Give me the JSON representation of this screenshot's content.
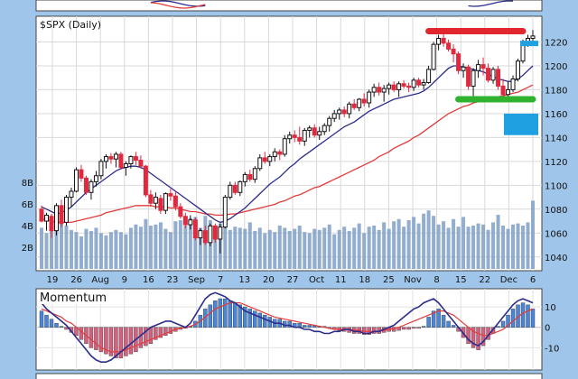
{
  "chart_data": [
    {
      "type": "candlestick",
      "title": "$SPX (Daily)",
      "y_ticks": [
        1040,
        1060,
        1080,
        1100,
        1120,
        1140,
        1160,
        1180,
        1200,
        1220
      ],
      "ylim": [
        1030,
        1240
      ],
      "volume_ticks": [
        "2B",
        "4B",
        "6B",
        "8B"
      ],
      "volume_ylim": [
        0,
        10
      ],
      "x_ticks": [
        "19",
        "26",
        "Aug",
        "9",
        "16",
        "23",
        "Sep",
        "7",
        "13",
        "20",
        "27",
        "Oct",
        "11",
        "18",
        "25",
        "Nov",
        "8",
        "15",
        "22",
        "Dec",
        "6"
      ],
      "grid": true,
      "price": [
        {
          "o": 1080,
          "h": 1083,
          "l": 1069,
          "c": 1070
        },
        {
          "o": 1070,
          "h": 1077,
          "l": 1062,
          "c": 1075
        },
        {
          "o": 1074,
          "h": 1076,
          "l": 1056,
          "c": 1062
        },
        {
          "o": 1062,
          "h": 1085,
          "l": 1058,
          "c": 1083
        },
        {
          "o": 1083,
          "h": 1088,
          "l": 1065,
          "c": 1068
        },
        {
          "o": 1069,
          "h": 1092,
          "l": 1066,
          "c": 1090
        },
        {
          "o": 1090,
          "h": 1098,
          "l": 1082,
          "c": 1095
        },
        {
          "o": 1095,
          "h": 1115,
          "l": 1094,
          "c": 1113
        },
        {
          "o": 1113,
          "h": 1117,
          "l": 1103,
          "c": 1106
        },
        {
          "o": 1106,
          "h": 1108,
          "l": 1092,
          "c": 1094
        },
        {
          "o": 1094,
          "h": 1105,
          "l": 1088,
          "c": 1103
        },
        {
          "o": 1103,
          "h": 1112,
          "l": 1099,
          "c": 1108
        },
        {
          "o": 1108,
          "h": 1122,
          "l": 1105,
          "c": 1120
        },
        {
          "o": 1120,
          "h": 1126,
          "l": 1114,
          "c": 1124
        },
        {
          "o": 1124,
          "h": 1127,
          "l": 1118,
          "c": 1122
        },
        {
          "o": 1122,
          "h": 1128,
          "l": 1115,
          "c": 1126
        },
        {
          "o": 1126,
          "h": 1128,
          "l": 1113,
          "c": 1115
        },
        {
          "o": 1115,
          "h": 1120,
          "l": 1108,
          "c": 1118
        },
        {
          "o": 1118,
          "h": 1125,
          "l": 1114,
          "c": 1124
        },
        {
          "o": 1124,
          "h": 1128,
          "l": 1117,
          "c": 1121
        },
        {
          "o": 1121,
          "h": 1125,
          "l": 1114,
          "c": 1116
        },
        {
          "o": 1116,
          "h": 1117,
          "l": 1090,
          "c": 1092
        },
        {
          "o": 1092,
          "h": 1096,
          "l": 1082,
          "c": 1085
        },
        {
          "o": 1085,
          "h": 1094,
          "l": 1080,
          "c": 1090
        },
        {
          "o": 1089,
          "h": 1092,
          "l": 1076,
          "c": 1079
        },
        {
          "o": 1079,
          "h": 1094,
          "l": 1076,
          "c": 1093
        },
        {
          "o": 1093,
          "h": 1097,
          "l": 1087,
          "c": 1091
        },
        {
          "o": 1091,
          "h": 1095,
          "l": 1079,
          "c": 1082
        },
        {
          "o": 1082,
          "h": 1085,
          "l": 1072,
          "c": 1074
        },
        {
          "o": 1074,
          "h": 1077,
          "l": 1064,
          "c": 1067
        },
        {
          "o": 1067,
          "h": 1075,
          "l": 1063,
          "c": 1071
        },
        {
          "o": 1071,
          "h": 1073,
          "l": 1054,
          "c": 1056
        },
        {
          "o": 1056,
          "h": 1064,
          "l": 1050,
          "c": 1062
        },
        {
          "o": 1062,
          "h": 1066,
          "l": 1050,
          "c": 1052
        },
        {
          "o": 1052,
          "h": 1068,
          "l": 1049,
          "c": 1066
        },
        {
          "o": 1066,
          "h": 1068,
          "l": 1052,
          "c": 1055
        },
        {
          "o": 1055,
          "h": 1068,
          "l": 1043,
          "c": 1065
        },
        {
          "o": 1065,
          "h": 1092,
          "l": 1064,
          "c": 1090
        },
        {
          "o": 1090,
          "h": 1103,
          "l": 1088,
          "c": 1100
        },
        {
          "o": 1100,
          "h": 1103,
          "l": 1092,
          "c": 1094
        },
        {
          "o": 1094,
          "h": 1104,
          "l": 1091,
          "c": 1103
        },
        {
          "o": 1103,
          "h": 1111,
          "l": 1099,
          "c": 1109
        },
        {
          "o": 1109,
          "h": 1113,
          "l": 1103,
          "c": 1105
        },
        {
          "o": 1105,
          "h": 1116,
          "l": 1102,
          "c": 1114
        },
        {
          "o": 1114,
          "h": 1126,
          "l": 1112,
          "c": 1123
        },
        {
          "o": 1123,
          "h": 1128,
          "l": 1118,
          "c": 1120
        },
        {
          "o": 1120,
          "h": 1126,
          "l": 1116,
          "c": 1124
        },
        {
          "o": 1124,
          "h": 1131,
          "l": 1120,
          "c": 1128
        },
        {
          "o": 1128,
          "h": 1130,
          "l": 1121,
          "c": 1126
        },
        {
          "o": 1126,
          "h": 1142,
          "l": 1124,
          "c": 1139
        },
        {
          "o": 1139,
          "h": 1145,
          "l": 1135,
          "c": 1142
        },
        {
          "o": 1142,
          "h": 1146,
          "l": 1136,
          "c": 1140
        },
        {
          "o": 1140,
          "h": 1149,
          "l": 1134,
          "c": 1137
        },
        {
          "o": 1137,
          "h": 1148,
          "l": 1133,
          "c": 1146
        },
        {
          "o": 1146,
          "h": 1150,
          "l": 1140,
          "c": 1148
        },
        {
          "o": 1148,
          "h": 1151,
          "l": 1140,
          "c": 1142
        },
        {
          "o": 1142,
          "h": 1149,
          "l": 1138,
          "c": 1145
        },
        {
          "o": 1145,
          "h": 1152,
          "l": 1142,
          "c": 1150
        },
        {
          "o": 1150,
          "h": 1158,
          "l": 1145,
          "c": 1156
        },
        {
          "o": 1156,
          "h": 1163,
          "l": 1153,
          "c": 1160
        },
        {
          "o": 1160,
          "h": 1165,
          "l": 1155,
          "c": 1163
        },
        {
          "o": 1163,
          "h": 1166,
          "l": 1157,
          "c": 1160
        },
        {
          "o": 1160,
          "h": 1170,
          "l": 1156,
          "c": 1168
        },
        {
          "o": 1168,
          "h": 1172,
          "l": 1163,
          "c": 1165
        },
        {
          "o": 1165,
          "h": 1173,
          "l": 1162,
          "c": 1172
        },
        {
          "o": 1172,
          "h": 1177,
          "l": 1166,
          "c": 1169
        },
        {
          "o": 1169,
          "h": 1180,
          "l": 1165,
          "c": 1178
        },
        {
          "o": 1178,
          "h": 1185,
          "l": 1174,
          "c": 1182
        },
        {
          "o": 1182,
          "h": 1186,
          "l": 1175,
          "c": 1178
        },
        {
          "o": 1178,
          "h": 1184,
          "l": 1170,
          "c": 1181
        },
        {
          "o": 1181,
          "h": 1186,
          "l": 1176,
          "c": 1184
        },
        {
          "o": 1184,
          "h": 1187,
          "l": 1178,
          "c": 1180
        },
        {
          "o": 1180,
          "h": 1187,
          "l": 1174,
          "c": 1185
        },
        {
          "o": 1185,
          "h": 1188,
          "l": 1181,
          "c": 1183
        },
        {
          "o": 1183,
          "h": 1186,
          "l": 1178,
          "c": 1182
        },
        {
          "o": 1182,
          "h": 1190,
          "l": 1179,
          "c": 1188
        },
        {
          "o": 1188,
          "h": 1190,
          "l": 1182,
          "c": 1184
        },
        {
          "o": 1184,
          "h": 1189,
          "l": 1180,
          "c": 1186
        },
        {
          "o": 1186,
          "h": 1200,
          "l": 1185,
          "c": 1197
        },
        {
          "o": 1197,
          "h": 1220,
          "l": 1196,
          "c": 1218
        },
        {
          "o": 1218,
          "h": 1226,
          "l": 1213,
          "c": 1223
        },
        {
          "o": 1223,
          "h": 1227,
          "l": 1216,
          "c": 1219
        },
        {
          "o": 1219,
          "h": 1222,
          "l": 1212,
          "c": 1214
        },
        {
          "o": 1214,
          "h": 1218,
          "l": 1203,
          "c": 1210
        },
        {
          "o": 1210,
          "h": 1212,
          "l": 1193,
          "c": 1196
        },
        {
          "o": 1196,
          "h": 1202,
          "l": 1190,
          "c": 1199
        },
        {
          "o": 1199,
          "h": 1201,
          "l": 1180,
          "c": 1183
        },
        {
          "o": 1183,
          "h": 1198,
          "l": 1173,
          "c": 1196
        },
        {
          "o": 1196,
          "h": 1205,
          "l": 1190,
          "c": 1201
        },
        {
          "o": 1201,
          "h": 1207,
          "l": 1192,
          "c": 1198
        },
        {
          "o": 1198,
          "h": 1202,
          "l": 1186,
          "c": 1188
        },
        {
          "o": 1188,
          "h": 1199,
          "l": 1185,
          "c": 1197
        },
        {
          "o": 1197,
          "h": 1200,
          "l": 1180,
          "c": 1183
        },
        {
          "o": 1183,
          "h": 1189,
          "l": 1173,
          "c": 1176
        },
        {
          "o": 1176,
          "h": 1187,
          "l": 1174,
          "c": 1180
        },
        {
          "o": 1180,
          "h": 1192,
          "l": 1178,
          "c": 1189
        },
        {
          "o": 1189,
          "h": 1206,
          "l": 1187,
          "c": 1204
        },
        {
          "o": 1204,
          "h": 1222,
          "l": 1202,
          "c": 1220
        },
        {
          "o": 1220,
          "h": 1226,
          "l": 1216,
          "c": 1223
        },
        {
          "o": 1223,
          "h": 1230,
          "l": 1220,
          "c": 1225
        }
      ],
      "sma_short": [
        1082,
        1080,
        1078,
        1076,
        1077,
        1079,
        1082,
        1086,
        1090,
        1094,
        1097,
        1100,
        1103,
        1106,
        1109,
        1112,
        1114,
        1115,
        1116,
        1116,
        1115,
        1113,
        1110,
        1107,
        1104,
        1101,
        1098,
        1095,
        1092,
        1089,
        1086,
        1083,
        1080,
        1077,
        1074,
        1071,
        1069,
        1070,
        1072,
        1075,
        1078,
        1081,
        1085,
        1089,
        1093,
        1097,
        1101,
        1104,
        1107,
        1111,
        1115,
        1118,
        1122,
        1125,
        1128,
        1131,
        1134,
        1137,
        1140,
        1143,
        1146,
        1149,
        1151,
        1153,
        1156,
        1159,
        1162,
        1164,
        1166,
        1168,
        1170,
        1172,
        1173,
        1174,
        1175,
        1176,
        1177,
        1179,
        1182,
        1186,
        1190,
        1194,
        1198,
        1200,
        1200,
        1199,
        1198,
        1197,
        1196,
        1195,
        1193,
        1191,
        1189,
        1188,
        1187,
        1187,
        1189,
        1192,
        1196,
        1200
      ],
      "sma_long": [
        1072,
        1071,
        1070,
        1069,
        1069,
        1069,
        1069,
        1070,
        1071,
        1072,
        1073,
        1074,
        1075,
        1077,
        1078,
        1079,
        1080,
        1081,
        1082,
        1083,
        1083,
        1083,
        1083,
        1082,
        1082,
        1082,
        1081,
        1081,
        1080,
        1079,
        1078,
        1078,
        1077,
        1076,
        1076,
        1075,
        1075,
        1075,
        1076,
        1076,
        1077,
        1078,
        1079,
        1080,
        1081,
        1082,
        1083,
        1084,
        1086,
        1087,
        1089,
        1091,
        1092,
        1094,
        1096,
        1098,
        1099,
        1101,
        1103,
        1105,
        1107,
        1109,
        1111,
        1113,
        1115,
        1117,
        1119,
        1121,
        1124,
        1126,
        1128,
        1131,
        1133,
        1135,
        1137,
        1140,
        1142,
        1145,
        1148,
        1151,
        1154,
        1157,
        1160,
        1162,
        1164,
        1166,
        1167,
        1169,
        1170,
        1171,
        1172,
        1173,
        1174,
        1175,
        1176,
        1177,
        1178,
        1180,
        1182,
        1184
      ],
      "volume": [
        3.8,
        3.3,
        4.3,
        5.0,
        4.2,
        4.0,
        3.6,
        3.4,
        3.0,
        3.7,
        3.5,
        3.8,
        3.3,
        3.1,
        3.4,
        3.6,
        3.4,
        3.2,
        3.8,
        4.1,
        3.9,
        4.6,
        4.0,
        4.1,
        4.3,
        3.7,
        3.4,
        4.4,
        4.5,
        4.0,
        4.7,
        4.8,
        3.8,
        4.9,
        4.5,
        3.6,
        4.2,
        4.9,
        3.6,
        3.9,
        3.8,
        3.7,
        4.3,
        3.5,
        3.8,
        3.3,
        3.6,
        3.4,
        4.0,
        3.8,
        3.5,
        3.7,
        4.0,
        3.4,
        3.3,
        3.7,
        3.6,
        3.8,
        4.1,
        3.2,
        3.6,
        3.9,
        3.5,
        3.8,
        4.2,
        3.3,
        3.9,
        4.0,
        3.6,
        4.3,
        3.7,
        4.4,
        4.6,
        3.9,
        4.5,
        4.8,
        4.2,
        5.1,
        5.4,
        4.9,
        4.1,
        4.4,
        3.8,
        4.6,
        3.9,
        4.8,
        3.9,
        4.0,
        4.2,
        4.1,
        3.6,
        4.3,
        5.0,
        4.0,
        3.7,
        4.1,
        4.2,
        4.0,
        4.3,
        6.3
      ]
    },
    {
      "type": "bar",
      "title": "Momentum",
      "y_ticks": [
        10,
        0,
        -10
      ],
      "ylim": [
        -20,
        18
      ],
      "histogram": [
        8,
        6,
        4,
        2,
        0.5,
        -1,
        -2.5,
        -4,
        -6,
        -8,
        -10,
        -11,
        -12,
        -13,
        -14,
        -15,
        -15,
        -14,
        -13,
        -12,
        -10,
        -9,
        -8,
        -6,
        -5,
        -4,
        -3,
        -2,
        -1,
        -0.5,
        0.5,
        3,
        6,
        9,
        11,
        13,
        14,
        14,
        13,
        12,
        11,
        10,
        9,
        8,
        7,
        6,
        5,
        4,
        4,
        3,
        3,
        2,
        2,
        1,
        1,
        1,
        0.5,
        0.5,
        -0.5,
        -1,
        -1.5,
        -2,
        -2.5,
        -3,
        -3,
        -3.5,
        -3.5,
        -3,
        -3,
        -2.5,
        -2,
        -2,
        -1.5,
        -1,
        -1,
        -0.5,
        -0.5,
        0.5,
        5,
        8,
        9,
        6,
        3,
        1,
        -2,
        -5,
        -8,
        -10,
        -11,
        -9,
        -6,
        -3,
        0.5,
        3,
        6,
        9,
        11,
        12,
        11,
        9
      ],
      "momentum_line": [
        12,
        9,
        7,
        5,
        3,
        1,
        -2,
        -5,
        -8,
        -11,
        -14,
        -16,
        -17,
        -17,
        -16,
        -14,
        -12,
        -10,
        -8,
        -6,
        -4,
        -2,
        0,
        1,
        2,
        3,
        3,
        2,
        1,
        0,
        2,
        6,
        10,
        14,
        16,
        17,
        16,
        15,
        13,
        12,
        10,
        8,
        7,
        6,
        5,
        4,
        3,
        2,
        2,
        1,
        1,
        0,
        0,
        -1,
        -1,
        -2,
        -2,
        -3,
        -3,
        -2,
        -2,
        -1,
        -1,
        -2,
        -2,
        -3,
        -3,
        -2,
        -2,
        -1,
        0,
        1,
        3,
        5,
        7,
        9,
        10,
        12,
        13,
        14,
        12,
        9,
        6,
        3,
        0,
        -3,
        -6,
        -8,
        -9,
        -7,
        -4,
        -1,
        2,
        5,
        8,
        11,
        13,
        14,
        13,
        12
      ],
      "signal_line": [
        9,
        8,
        7,
        6,
        5,
        3,
        2,
        0,
        -2,
        -4,
        -6,
        -8,
        -10,
        -11,
        -12,
        -12,
        -12,
        -11,
        -10,
        -9,
        -8,
        -7,
        -6,
        -5,
        -4,
        -3,
        -2,
        -1,
        -0.5,
        0,
        0.5,
        1.5,
        3,
        5,
        7,
        9,
        10,
        11,
        12,
        12,
        12,
        11,
        10,
        9,
        8,
        7,
        6,
        5,
        4.5,
        4,
        3.5,
        3,
        2.5,
        2,
        1.5,
        1,
        0.5,
        0,
        -0.5,
        -1,
        -1,
        -1,
        -1,
        -1.5,
        -1.5,
        -2,
        -2,
        -2,
        -2,
        -1.5,
        -1,
        -0.5,
        0,
        1,
        2,
        3,
        4,
        5,
        6,
        7,
        8,
        8,
        7,
        6,
        4,
        2,
        0,
        -2,
        -3,
        -4,
        -4,
        -3,
        -2,
        -1,
        1,
        3,
        5,
        7,
        8,
        9
      ]
    }
  ],
  "colors": {
    "frame": "#9fc6ea",
    "panel_bg": "#ffffff",
    "up_candle": "#111111",
    "down_candle": "#e0293f",
    "sma_short": "#2c2c8c",
    "sma_long": "#e23b3b",
    "volume_bar": "#7f9fc6",
    "momentum_pos": "#4a86d8",
    "momentum_neg": "#d5607f",
    "resistance_marker": "#e1262d",
    "support_marker": "#2fb32f",
    "level_marker": "#1fa0e0"
  }
}
